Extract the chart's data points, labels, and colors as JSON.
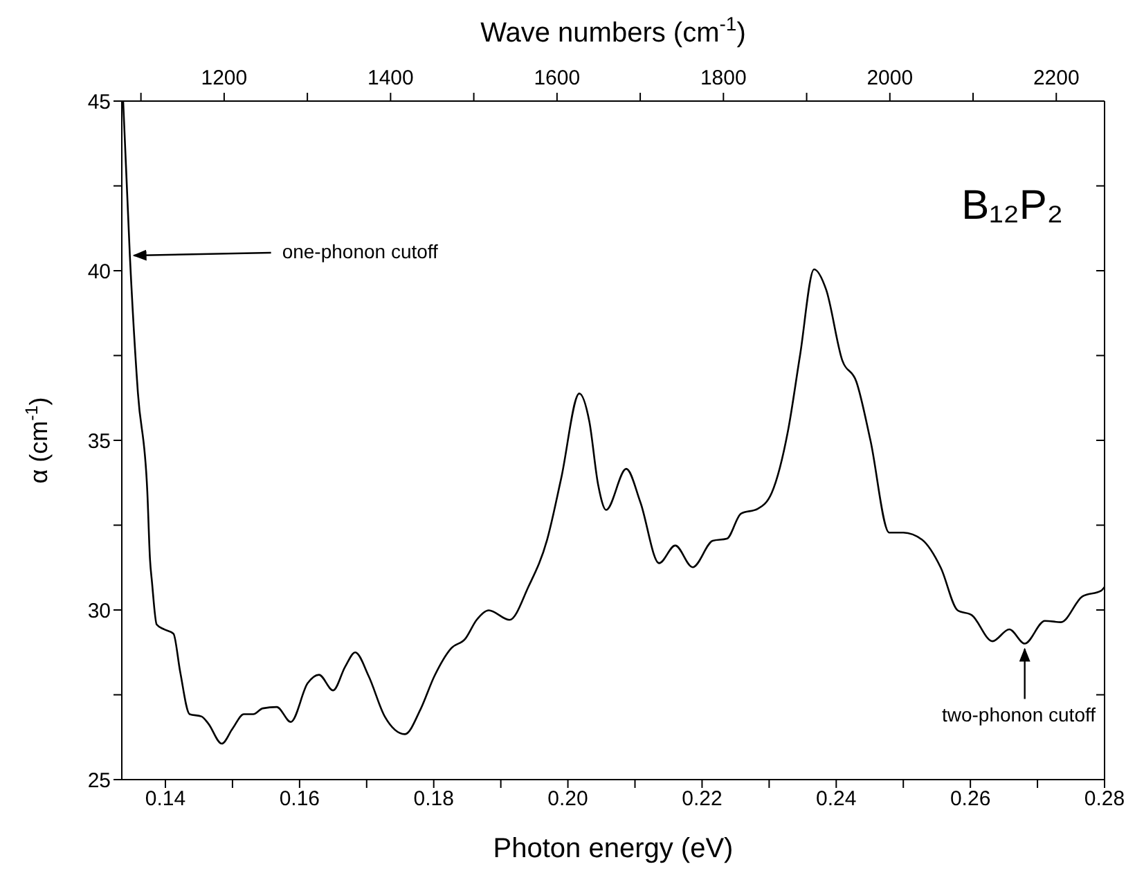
{
  "chart_data": {
    "type": "line",
    "xlabel": "Photon energy (eV)",
    "ylabel": "α (cm$^{-1}$)",
    "x2label": "Wave numbers (cm$^{-1}$)",
    "xlim": [
      0.1335,
      0.28
    ],
    "xticks": [
      {
        "value": 0.14,
        "label": "0.14"
      },
      {
        "value": 0.15,
        "label": null
      },
      {
        "value": 0.16,
        "label": "0.16"
      },
      {
        "value": 0.17,
        "label": null
      },
      {
        "value": 0.18,
        "label": "0.18"
      },
      {
        "value": 0.19,
        "label": null
      },
      {
        "value": 0.2,
        "label": "0.20"
      },
      {
        "value": 0.21,
        "label": null
      },
      {
        "value": 0.22,
        "label": "0.22"
      },
      {
        "value": 0.23,
        "label": null
      },
      {
        "value": 0.24,
        "label": "0.24"
      },
      {
        "value": 0.25,
        "label": null
      },
      {
        "value": 0.26,
        "label": "0.26"
      },
      {
        "value": 0.27,
        "label": null
      },
      {
        "value": 0.28,
        "label": "0.28"
      }
    ],
    "x2lim": [
      1077,
      2258
    ],
    "x2ticks": [
      {
        "value": 1100,
        "label": null
      },
      1200,
      {
        "value": 1300,
        "label": null
      },
      1400,
      {
        "value": 1500,
        "label": null
      },
      1600,
      {
        "value": 1700,
        "label": null
      },
      1800,
      {
        "value": 1900,
        "label": null
      },
      2000,
      {
        "value": 2100,
        "label": null
      },
      2200
    ],
    "ylim": [
      25,
      45
    ],
    "yticks": [
      25,
      {
        "value": 27.5,
        "label": null
      },
      30,
      {
        "value": 32.5,
        "label": null
      },
      35,
      {
        "value": 37.5,
        "label": null
      },
      40,
      {
        "value": 42.5,
        "label": null
      },
      45
    ],
    "series": [
      {
        "color": "#000000",
        "x": [
          0.1337,
          0.1347,
          0.1359,
          0.1373,
          0.1377,
          0.138,
          0.1387,
          0.1398,
          0.1412,
          0.1422,
          0.1436,
          0.1454,
          0.1464,
          0.1484,
          0.15,
          0.1517,
          0.1531,
          0.1545,
          0.1566,
          0.1587,
          0.1612,
          0.1629,
          0.165,
          0.1668,
          0.1683,
          0.1703,
          0.1727,
          0.1757,
          0.178,
          0.1801,
          0.1826,
          0.1847,
          0.1864,
          0.1882,
          0.1913,
          0.1941,
          0.1969,
          0.199,
          0.2017,
          0.2032,
          0.2045,
          0.2057,
          0.2087,
          0.2108,
          0.2136,
          0.216,
          0.2186,
          0.2216,
          0.2237,
          0.2258,
          0.2283,
          0.2304,
          0.2328,
          0.2346,
          0.2367,
          0.2385,
          0.2409,
          0.243,
          0.2451,
          0.2479,
          0.25,
          0.2528,
          0.2556,
          0.2581,
          0.2602,
          0.2633,
          0.2658,
          0.2681,
          0.2711,
          0.2735,
          0.2767,
          0.2795,
          0.28
        ],
        "values": [
          45,
          40.45,
          36.4,
          33.5,
          31.5,
          30.82,
          29.57,
          29.43,
          29.3,
          28.18,
          26.93,
          26.86,
          26.65,
          26.06,
          26.5,
          26.93,
          26.93,
          27.1,
          27.14,
          26.7,
          27.84,
          28.09,
          27.63,
          28.33,
          28.75,
          28.05,
          26.86,
          26.34,
          27.06,
          28.05,
          28.87,
          29.15,
          29.71,
          29.99,
          29.71,
          30.68,
          32.07,
          33.88,
          36.38,
          35.55,
          33.7,
          32.95,
          34.16,
          33.18,
          31.38,
          31.9,
          31.26,
          32.04,
          32.1,
          32.84,
          32.98,
          33.46,
          35.27,
          37.5,
          40.04,
          39.44,
          37.36,
          36.73,
          35.0,
          32.28,
          32.28,
          32.07,
          31.24,
          29.99,
          29.85,
          29.08,
          29.43,
          29.01,
          29.68,
          29.64,
          30.4,
          30.57,
          30.68
        ]
      }
    ],
    "annotations": [
      {
        "text": "one-phonon cutoff",
        "x": 0.1347,
        "y": 40.45
      },
      "B₁₂P₂",
      {
        "text": "two-phonon cutoff",
        "x": 0.2681,
        "y": 29.01
      }
    ]
  }
}
